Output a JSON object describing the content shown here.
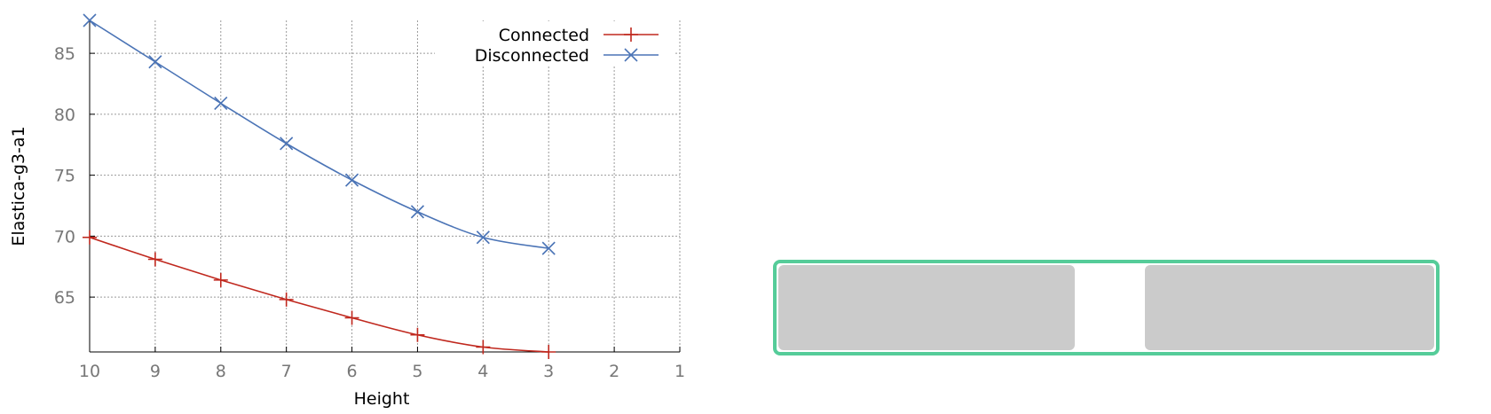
{
  "chart_data": {
    "type": "line",
    "xlabel": "Height",
    "ylabel": "Elastica-g3-a1",
    "x": [
      10,
      9,
      8,
      7,
      6,
      5,
      4,
      3
    ],
    "xlim": [
      10,
      1
    ],
    "x_ticks": [
      10,
      9,
      8,
      7,
      6,
      5,
      4,
      3,
      2,
      1
    ],
    "ylim": [
      60.5,
      87.7
    ],
    "y_ticks": [
      65,
      70,
      75,
      80,
      85
    ],
    "grid": true,
    "legend_position": "top-right",
    "series": [
      {
        "name": "Connected",
        "marker": "plus",
        "color": "#c0281e",
        "values": [
          69.9,
          68.1,
          66.4,
          64.8,
          63.3,
          61.9,
          60.9,
          60.5
        ]
      },
      {
        "name": "Disconnected",
        "marker": "cross",
        "color": "#4b74b6",
        "values": [
          87.7,
          84.3,
          80.9,
          77.6,
          74.6,
          72.0,
          69.9,
          69.0
        ]
      }
    ]
  }
}
